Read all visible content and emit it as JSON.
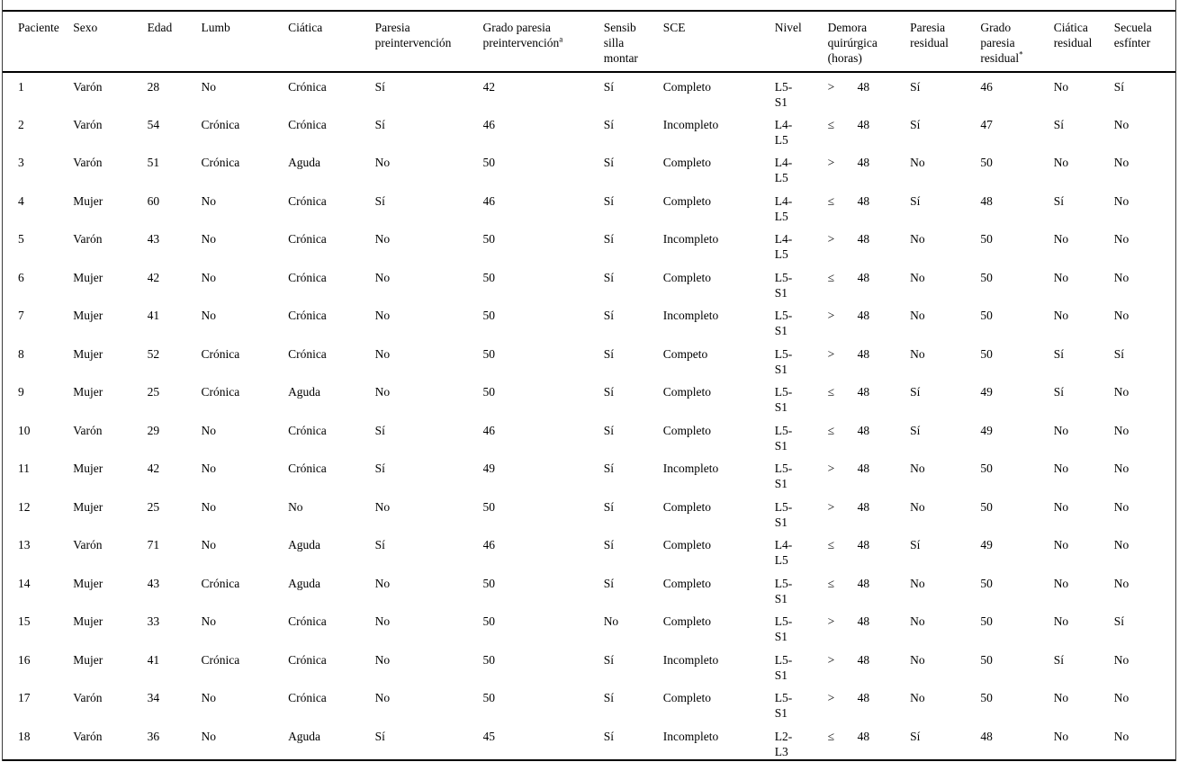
{
  "table": {
    "columns": [
      {
        "key": "paciente",
        "label": "Paciente"
      },
      {
        "key": "sexo",
        "label": "Sexo"
      },
      {
        "key": "edad",
        "label": "Edad"
      },
      {
        "key": "lumb",
        "label": "Lumb"
      },
      {
        "key": "ciatica",
        "label": "Ciática"
      },
      {
        "key": "paresia_pre",
        "label": "Paresia preintervención"
      },
      {
        "key": "grado_pre",
        "label": "Grado paresia preintervención",
        "sup": "a"
      },
      {
        "key": "sensib",
        "label": "Sensib silla montar"
      },
      {
        "key": "sce",
        "label": "SCE"
      },
      {
        "key": "nivel",
        "label": "Nivel"
      },
      {
        "key": "demora",
        "label": "Demora quirúrgica (horas)"
      },
      {
        "key": "paresia_res",
        "label": "Paresia residual"
      },
      {
        "key": "grado_res",
        "label": "Grado paresia residual",
        "sup": "*"
      },
      {
        "key": "ciatica_res",
        "label": "Ciática residual"
      },
      {
        "key": "secuela",
        "label": "Secuela esfínter"
      }
    ],
    "rows": [
      {
        "paciente": "1",
        "sexo": "Varón",
        "edad": "28",
        "lumb": "No",
        "ciatica": "Crónica",
        "paresia_pre": "Sí",
        "grado_pre": "42",
        "sensib": "Sí",
        "sce": "Completo",
        "nivel": "L5-S1",
        "demora_op": ">",
        "demora_horas": "48",
        "paresia_res": "Sí",
        "grado_res": "46",
        "ciatica_res": "No",
        "secuela": "Sí"
      },
      {
        "paciente": "2",
        "sexo": "Varón",
        "edad": "54",
        "lumb": "Crónica",
        "ciatica": "Crónica",
        "paresia_pre": "Sí",
        "grado_pre": "46",
        "sensib": "Sí",
        "sce": "Incompleto",
        "nivel": "L4-L5",
        "demora_op": "≤",
        "demora_horas": "48",
        "paresia_res": "Sí",
        "grado_res": "47",
        "ciatica_res": "Sí",
        "secuela": "No"
      },
      {
        "paciente": "3",
        "sexo": "Varón",
        "edad": "51",
        "lumb": "Crónica",
        "ciatica": "Aguda",
        "paresia_pre": "No",
        "grado_pre": "50",
        "sensib": "Sí",
        "sce": "Completo",
        "nivel": "L4-L5",
        "demora_op": ">",
        "demora_horas": "48",
        "paresia_res": "No",
        "grado_res": "50",
        "ciatica_res": "No",
        "secuela": "No"
      },
      {
        "paciente": "4",
        "sexo": "Mujer",
        "edad": "60",
        "lumb": "No",
        "ciatica": "Crónica",
        "paresia_pre": "Sí",
        "grado_pre": "46",
        "sensib": "Sí",
        "sce": "Completo",
        "nivel": "L4-L5",
        "demora_op": "≤",
        "demora_horas": "48",
        "paresia_res": "Sí",
        "grado_res": "48",
        "ciatica_res": "Sí",
        "secuela": "No"
      },
      {
        "paciente": "5",
        "sexo": "Varón",
        "edad": "43",
        "lumb": "No",
        "ciatica": "Crónica",
        "paresia_pre": "No",
        "grado_pre": "50",
        "sensib": "Sí",
        "sce": "Incompleto",
        "nivel": "L4-L5",
        "demora_op": ">",
        "demora_horas": "48",
        "paresia_res": "No",
        "grado_res": "50",
        "ciatica_res": "No",
        "secuela": "No"
      },
      {
        "paciente": "6",
        "sexo": "Mujer",
        "edad": "42",
        "lumb": "No",
        "ciatica": "Crónica",
        "paresia_pre": "No",
        "grado_pre": "50",
        "sensib": "Sí",
        "sce": "Completo",
        "nivel": "L5-S1",
        "demora_op": "≤",
        "demora_horas": "48",
        "paresia_res": "No",
        "grado_res": "50",
        "ciatica_res": "No",
        "secuela": "No"
      },
      {
        "paciente": "7",
        "sexo": "Mujer",
        "edad": "41",
        "lumb": "No",
        "ciatica": "Crónica",
        "paresia_pre": "No",
        "grado_pre": "50",
        "sensib": "Sí",
        "sce": "Incompleto",
        "nivel": "L5-S1",
        "demora_op": ">",
        "demora_horas": "48",
        "paresia_res": "No",
        "grado_res": "50",
        "ciatica_res": "No",
        "secuela": "No"
      },
      {
        "paciente": "8",
        "sexo": "Mujer",
        "edad": "52",
        "lumb": "Crónica",
        "ciatica": "Crónica",
        "paresia_pre": "No",
        "grado_pre": "50",
        "sensib": "Sí",
        "sce": "Competo",
        "nivel": "L5-S1",
        "demora_op": ">",
        "demora_horas": "48",
        "paresia_res": "No",
        "grado_res": "50",
        "ciatica_res": "Sí",
        "secuela": "Sí"
      },
      {
        "paciente": "9",
        "sexo": "Mujer",
        "edad": "25",
        "lumb": "Crónica",
        "ciatica": "Aguda",
        "paresia_pre": "No",
        "grado_pre": "50",
        "sensib": "Sí",
        "sce": "Completo",
        "nivel": "L5-S1",
        "demora_op": "≤",
        "demora_horas": "48",
        "paresia_res": "Sí",
        "grado_res": "49",
        "ciatica_res": "Sí",
        "secuela": "No"
      },
      {
        "paciente": "10",
        "sexo": "Varón",
        "edad": "29",
        "lumb": "No",
        "ciatica": "Crónica",
        "paresia_pre": "Sí",
        "grado_pre": "46",
        "sensib": "Sí",
        "sce": "Completo",
        "nivel": "L5-S1",
        "demora_op": "≤",
        "demora_horas": "48",
        "paresia_res": "Sí",
        "grado_res": "49",
        "ciatica_res": "No",
        "secuela": "No"
      },
      {
        "paciente": "11",
        "sexo": "Mujer",
        "edad": "42",
        "lumb": "No",
        "ciatica": "Crónica",
        "paresia_pre": "Sí",
        "grado_pre": "49",
        "sensib": "Sí",
        "sce": "Incompleto",
        "nivel": "L5-S1",
        "demora_op": ">",
        "demora_horas": "48",
        "paresia_res": "No",
        "grado_res": "50",
        "ciatica_res": "No",
        "secuela": "No"
      },
      {
        "paciente": "12",
        "sexo": "Mujer",
        "edad": "25",
        "lumb": "No",
        "ciatica": "No",
        "paresia_pre": "No",
        "grado_pre": "50",
        "sensib": "Sí",
        "sce": "Completo",
        "nivel": "L5-S1",
        "demora_op": ">",
        "demora_horas": "48",
        "paresia_res": "No",
        "grado_res": "50",
        "ciatica_res": "No",
        "secuela": "No"
      },
      {
        "paciente": "13",
        "sexo": "Varón",
        "edad": "71",
        "lumb": "No",
        "ciatica": "Aguda",
        "paresia_pre": "Sí",
        "grado_pre": "46",
        "sensib": "Sí",
        "sce": "Completo",
        "nivel": "L4-L5",
        "demora_op": "≤",
        "demora_horas": "48",
        "paresia_res": "Sí",
        "grado_res": "49",
        "ciatica_res": "No",
        "secuela": "No"
      },
      {
        "paciente": "14",
        "sexo": "Mujer",
        "edad": "43",
        "lumb": "Crónica",
        "ciatica": "Aguda",
        "paresia_pre": "No",
        "grado_pre": "50",
        "sensib": "Sí",
        "sce": "Completo",
        "nivel": "L5-S1",
        "demora_op": "≤",
        "demora_horas": "48",
        "paresia_res": "No",
        "grado_res": "50",
        "ciatica_res": "No",
        "secuela": "No"
      },
      {
        "paciente": "15",
        "sexo": "Mujer",
        "edad": "33",
        "lumb": "No",
        "ciatica": "Crónica",
        "paresia_pre": "No",
        "grado_pre": "50",
        "sensib": "No",
        "sce": "Completo",
        "nivel": "L5-S1",
        "demora_op": ">",
        "demora_horas": "48",
        "paresia_res": "No",
        "grado_res": "50",
        "ciatica_res": "No",
        "secuela": "Sí"
      },
      {
        "paciente": "16",
        "sexo": "Mujer",
        "edad": "41",
        "lumb": "Crónica",
        "ciatica": "Crónica",
        "paresia_pre": "No",
        "grado_pre": "50",
        "sensib": "Sí",
        "sce": "Incompleto",
        "nivel": "L5-S1",
        "demora_op": ">",
        "demora_horas": "48",
        "paresia_res": "No",
        "grado_res": "50",
        "ciatica_res": "Sí",
        "secuela": "No"
      },
      {
        "paciente": "17",
        "sexo": "Varón",
        "edad": "34",
        "lumb": "No",
        "ciatica": "Crónica",
        "paresia_pre": "No",
        "grado_pre": "50",
        "sensib": "Sí",
        "sce": "Completo",
        "nivel": "L5-S1",
        "demora_op": ">",
        "demora_horas": "48",
        "paresia_res": "No",
        "grado_res": "50",
        "ciatica_res": "No",
        "secuela": "No"
      },
      {
        "paciente": "18",
        "sexo": "Varón",
        "edad": "36",
        "lumb": "No",
        "ciatica": "Aguda",
        "paresia_pre": "Sí",
        "grado_pre": "45",
        "sensib": "Sí",
        "sce": "Incompleto",
        "nivel": "L2-L3",
        "demora_op": "≤",
        "demora_horas": "48",
        "paresia_res": "Sí",
        "grado_res": "48",
        "ciatica_res": "No",
        "secuela": "No"
      }
    ]
  }
}
